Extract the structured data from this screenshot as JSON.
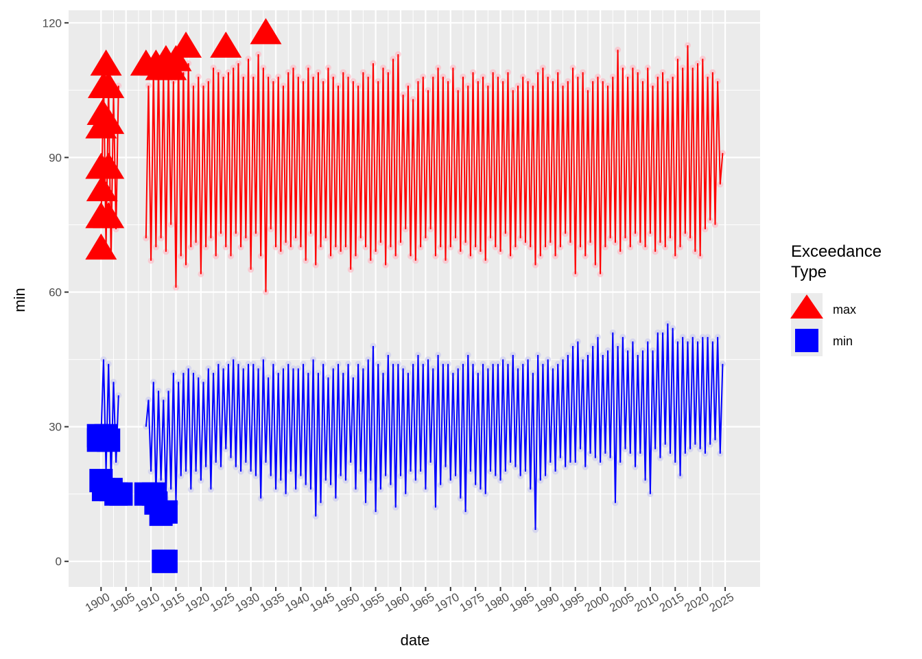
{
  "chart_data": {
    "type": "line",
    "x_label": "date",
    "y_label": "min",
    "legend_title": "Exceedance Type",
    "grid": true,
    "xlim": [
      1893.5,
      2032
    ],
    "ylim": [
      -5.7,
      122.8
    ],
    "xticks": [
      1900,
      1905,
      1910,
      1915,
      1920,
      1925,
      1930,
      1935,
      1940,
      1945,
      1950,
      1955,
      1960,
      1965,
      1970,
      1975,
      1980,
      1985,
      1990,
      1995,
      2000,
      2005,
      2010,
      2015,
      2020,
      2025
    ],
    "yticks": [
      0,
      30,
      60,
      90,
      120
    ],
    "x": [
      1900,
      1900.5,
      1901,
      1901.5,
      1902,
      1902.5,
      1903,
      1903.5,
      1906,
      1909,
      1909.5,
      1910,
      1910.5,
      1911,
      1911.5,
      1912,
      1912.5,
      1913,
      1913.5,
      1914,
      1914.5,
      1915,
      1915.5,
      1916,
      1916.5,
      1917,
      1917.5,
      1918,
      1918.5,
      1919,
      1919.5,
      1920,
      1920.5,
      1921,
      1921.5,
      1922,
      1922.5,
      1923,
      1923.5,
      1924,
      1924.5,
      1925,
      1925.5,
      1926,
      1926.5,
      1927,
      1927.5,
      1928,
      1928.5,
      1929,
      1929.5,
      1930,
      1930.5,
      1931,
      1931.5,
      1932,
      1932.5,
      1933,
      1933.5,
      1934,
      1934.5,
      1935,
      1935.5,
      1936,
      1936.5,
      1937,
      1937.5,
      1938,
      1938.5,
      1939,
      1939.5,
      1940,
      1940.5,
      1941,
      1941.5,
      1942,
      1942.5,
      1943,
      1943.5,
      1944,
      1944.5,
      1945,
      1945.5,
      1946,
      1946.5,
      1947,
      1947.5,
      1948,
      1948.5,
      1949,
      1949.5,
      1950,
      1950.5,
      1951,
      1951.5,
      1952,
      1952.5,
      1953,
      1953.5,
      1954,
      1954.5,
      1955,
      1955.5,
      1956,
      1956.5,
      1957,
      1957.5,
      1958,
      1958.5,
      1959,
      1959.5,
      1960,
      1960.5,
      1961,
      1961.5,
      1962,
      1962.5,
      1963,
      1963.5,
      1964,
      1964.5,
      1965,
      1965.5,
      1966,
      1966.5,
      1967,
      1967.5,
      1968,
      1968.5,
      1969,
      1969.5,
      1970,
      1970.5,
      1971,
      1971.5,
      1972,
      1972.5,
      1973,
      1973.5,
      1974,
      1974.5,
      1975,
      1975.5,
      1976,
      1976.5,
      1977,
      1977.5,
      1978,
      1978.5,
      1979,
      1979.5,
      1980,
      1980.5,
      1981,
      1981.5,
      1982,
      1982.5,
      1983,
      1983.5,
      1984,
      1984.5,
      1985,
      1985.5,
      1986,
      1986.5,
      1987,
      1987.5,
      1988,
      1988.5,
      1989,
      1989.5,
      1990,
      1990.5,
      1991,
      1991.5,
      1992,
      1992.5,
      1993,
      1993.5,
      1994,
      1994.5,
      1995,
      1995.5,
      1996,
      1996.5,
      1997,
      1997.5,
      1998,
      1998.5,
      1999,
      1999.5,
      2000,
      2000.5,
      2001,
      2001.5,
      2002,
      2002.5,
      2003,
      2003.5,
      2004,
      2004.5,
      2005,
      2005.5,
      2006,
      2006.5,
      2007,
      2007.5,
      2008,
      2008.5,
      2009,
      2009.5,
      2010,
      2010.5,
      2011,
      2011.5,
      2012,
      2012.5,
      2013,
      2013.5,
      2014,
      2014.5,
      2015,
      2015.5,
      2016,
      2016.5,
      2017,
      2017.5,
      2018,
      2018.5,
      2019,
      2019.5,
      2020,
      2020.5,
      2021,
      2021.5,
      2022,
      2022.5,
      2023,
      2023.5,
      2024,
      2024.5
    ],
    "series": [
      {
        "color": "#ff0000",
        "point_color": "#ffb6c1",
        "values": [
          75,
          108,
          70,
          106,
          68,
          104,
          74,
          106,
          null,
          72,
          106,
          67,
          109,
          70,
          111,
          72,
          108,
          69,
          110,
          75,
          107,
          61,
          112,
          68,
          109,
          66,
          111,
          70,
          106,
          71,
          108,
          64,
          106,
          70,
          107,
          72,
          110,
          68,
          109,
          73,
          108,
          70,
          109,
          68,
          110,
          73,
          111,
          70,
          108,
          72,
          112,
          65,
          108,
          73,
          113,
          68,
          110,
          60,
          108,
          74,
          107,
          70,
          108,
          69,
          106,
          71,
          109,
          70,
          110,
          72,
          108,
          70,
          107,
          67,
          110,
          73,
          108,
          66,
          109,
          70,
          107,
          72,
          110,
          68,
          108,
          70,
          106,
          69,
          109,
          70,
          108,
          65,
          107,
          68,
          106,
          72,
          109,
          70,
          108,
          67,
          111,
          69,
          107,
          71,
          110,
          66,
          109,
          70,
          112,
          68,
          113,
          71,
          104,
          74,
          106,
          68,
          103,
          67,
          107,
          70,
          108,
          72,
          105,
          74,
          108,
          68,
          110,
          70,
          108,
          67,
          107,
          70,
          110,
          72,
          105,
          69,
          108,
          71,
          106,
          68,
          109,
          70,
          107,
          69,
          108,
          67,
          106,
          72,
          109,
          70,
          108,
          69,
          107,
          73,
          109,
          68,
          105,
          70,
          106,
          72,
          108,
          71,
          107,
          70,
          106,
          66,
          109,
          68,
          110,
          70,
          108,
          71,
          107,
          68,
          109,
          70,
          106,
          73,
          107,
          71,
          110,
          64,
          108,
          70,
          109,
          68,
          105,
          71,
          107,
          66,
          108,
          64,
          107,
          70,
          106,
          72,
          108,
          71,
          114,
          69,
          110,
          72,
          108,
          70,
          110,
          73,
          109,
          71,
          107,
          70,
          110,
          73,
          106,
          69,
          108,
          71,
          109,
          70,
          107,
          72,
          108,
          68,
          112,
          70,
          110,
          73,
          115,
          72,
          110,
          69,
          111,
          68,
          112,
          74,
          108,
          76,
          109,
          75,
          107,
          84,
          91
        ]
      },
      {
        "color": "#0000ff",
        "point_color": "#c8c8f0",
        "values": [
          28,
          45,
          20,
          44,
          18,
          40,
          22,
          37,
          null,
          30,
          36,
          20,
          40,
          15,
          38,
          18,
          36,
          14,
          38,
          16,
          42,
          13,
          40,
          19,
          42,
          20,
          43,
          16,
          42,
          20,
          41,
          18,
          40,
          21,
          43,
          16,
          42,
          22,
          44,
          21,
          43,
          25,
          44,
          23,
          45,
          21,
          44,
          20,
          43,
          22,
          44,
          20,
          44,
          19,
          43,
          14,
          45,
          22,
          41,
          19,
          44,
          16,
          42,
          18,
          43,
          15,
          44,
          20,
          43,
          16,
          43,
          19,
          44,
          17,
          42,
          16,
          45,
          10,
          42,
          13,
          44,
          18,
          41,
          17,
          43,
          14,
          44,
          19,
          42,
          18,
          44,
          22,
          41,
          16,
          44,
          20,
          43,
          13,
          45,
          18,
          48,
          11,
          44,
          16,
          42,
          19,
          46,
          17,
          44,
          12,
          44,
          19,
          43,
          15,
          42,
          20,
          44,
          18,
          46,
          20,
          44,
          16,
          45,
          22,
          43,
          12,
          46,
          17,
          44,
          21,
          44,
          18,
          42,
          19,
          43,
          14,
          44,
          11,
          46,
          20,
          44,
          17,
          42,
          16,
          44,
          15,
          43,
          20,
          44,
          19,
          44,
          18,
          45,
          20,
          44,
          22,
          46,
          21,
          43,
          19,
          44,
          20,
          45,
          16,
          42,
          7,
          46,
          18,
          44,
          19,
          45,
          22,
          43,
          20,
          44,
          23,
          45,
          21,
          46,
          22,
          48,
          22,
          49,
          25,
          45,
          21,
          46,
          24,
          48,
          23,
          50,
          22,
          46,
          24,
          47,
          23,
          51,
          13,
          48,
          22,
          50,
          25,
          47,
          24,
          49,
          21,
          46,
          24,
          47,
          18,
          49,
          15,
          47,
          25,
          51,
          23,
          51,
          26,
          53,
          24,
          52,
          22,
          49,
          19,
          50,
          24,
          49,
          25,
          50,
          26,
          49,
          25,
          50,
          24,
          50,
          26,
          49,
          27,
          50,
          24,
          44
        ]
      }
    ],
    "exceedances": [
      {
        "name": "max",
        "shape": "triangle",
        "color": "#ff0000",
        "x": [
          1900,
          1900,
          1900.2,
          1900,
          1900,
          1900.3,
          1900.5,
          1901,
          1901.5,
          1901.5,
          1901.5,
          1901.5,
          1909,
          1911,
          1912,
          1913,
          1914,
          1915,
          1917,
          1925,
          1933
        ],
        "y": [
          70,
          77,
          83,
          88,
          97,
          100,
          106,
          111,
          106,
          98,
          88,
          77,
          111,
          111,
          110,
          112,
          110,
          112,
          115,
          115,
          118
        ]
      },
      {
        "name": "min",
        "shape": "square",
        "color": "#0000ff",
        "x": [
          1899.5,
          1899.5,
          1900,
          1900.5,
          1901,
          1901.5,
          1902,
          1903,
          1904,
          1909,
          1910.5,
          1911,
          1912,
          1913,
          1912.5,
          1913
        ],
        "y": [
          27,
          28,
          18,
          16,
          28,
          27,
          16,
          15,
          15,
          15,
          15,
          13,
          10.5,
          11,
          0,
          0
        ]
      }
    ]
  }
}
